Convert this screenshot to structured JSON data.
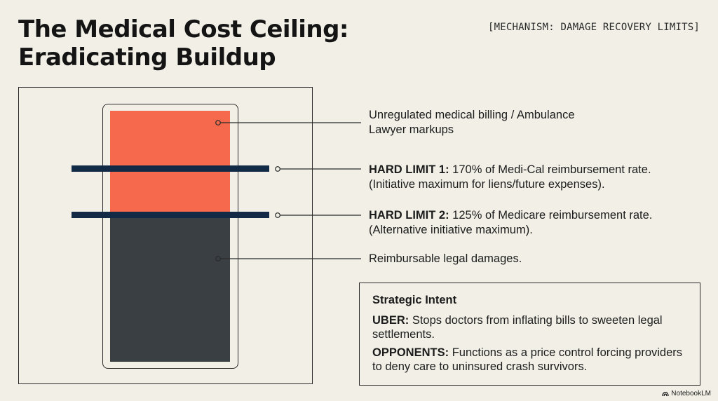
{
  "header": {
    "title_line1": "The Medical Cost Ceiling:",
    "title_line2": "Eradicating Buildup",
    "mechanism": "[MECHANISM: DAMAGE RECOVERY LIMITS]"
  },
  "diagram": {
    "colors": {
      "unregulated": "#f7694c",
      "reimbursable": "#3a3f44",
      "limit_bar": "#132a47"
    },
    "labels": {
      "top_line1": "Unregulated medical billing / Ambulance",
      "top_line2": "Lawyer markups",
      "limit1_heading": "HARD LIMIT 1:",
      "limit1_text": " 170% of Medi-Cal reimbursement rate.",
      "limit1_line2": "(Initiative maximum for liens/future expenses).",
      "limit2_heading": "HARD LIMIT 2:",
      "limit2_text": " 125% of Medicare reimbursement rate.",
      "limit2_line2": "(Alternative initiative maximum).",
      "bottom": "Reimbursable legal damages."
    }
  },
  "intent": {
    "title": "Strategic Intent",
    "uber_label": "UBER:",
    "uber_text": " Stops doctors from inflating bills to sweeten legal settlements.",
    "opponents_label": "OPPONENTS:",
    "opponents_text": " Functions as a price control forcing providers to deny care to uninsured crash survivors."
  },
  "brand": {
    "icon": "notebooklm-logo-icon",
    "name": "NotebookLM"
  }
}
